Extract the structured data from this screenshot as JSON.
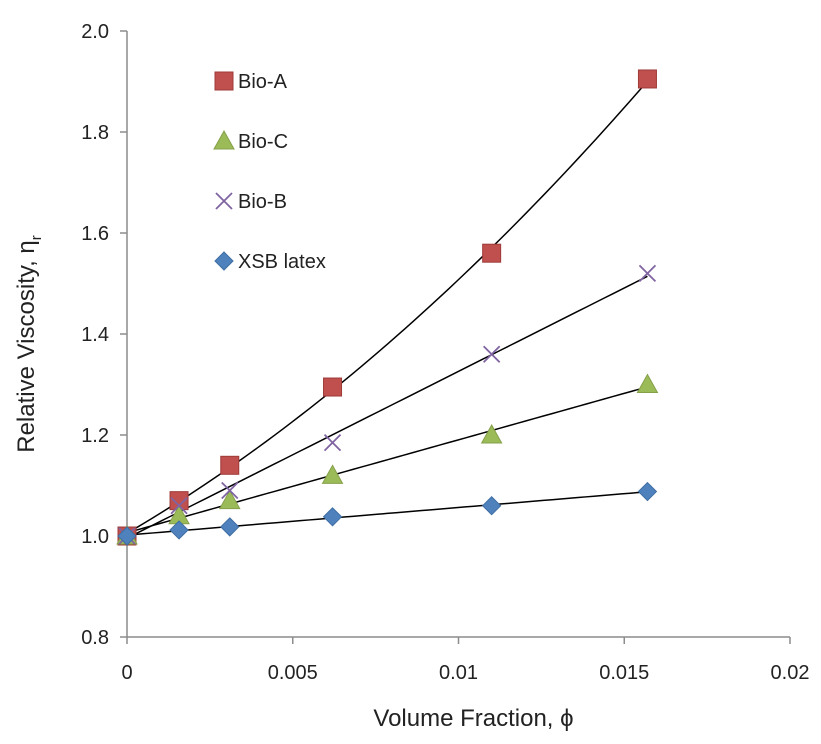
{
  "chart_data": {
    "type": "scatter",
    "title": "",
    "xlabel": "Volume Fraction, ϕ",
    "ylabel": "Relative Viscosity, η",
    "ylabel_subscript": "r",
    "xlim": [
      0,
      0.02
    ],
    "ylim": [
      0.8,
      2.0
    ],
    "x_ticks": [
      0,
      0.005,
      0.01,
      0.015,
      0.02
    ],
    "x_tick_labels": [
      "0",
      "0.005",
      "0.01",
      "0.015",
      "0.02"
    ],
    "y_ticks": [
      0.8,
      1.0,
      1.2,
      1.4,
      1.6,
      1.8,
      2.0
    ],
    "y_tick_labels": [
      "0.8",
      "1.0",
      "1.2",
      "1.4",
      "1.6",
      "1.8",
      "2.0"
    ],
    "grid": false,
    "legend_position": "top-left inside",
    "series": [
      {
        "name": "Bio-A",
        "marker": "square",
        "color": "#c0504d",
        "x": [
          0,
          0.00157,
          0.0031,
          0.0062,
          0.011,
          0.0157
        ],
        "y": [
          1.0,
          1.07,
          1.14,
          1.295,
          1.56,
          1.905
        ],
        "trend": "quadratic"
      },
      {
        "name": "Bio-C",
        "marker": "triangle",
        "color": "#9bbb59",
        "x": [
          0,
          0.00157,
          0.0031,
          0.0062,
          0.011,
          0.0157
        ],
        "y": [
          1.0,
          1.04,
          1.07,
          1.12,
          1.2,
          1.3
        ],
        "trend": "linear"
      },
      {
        "name": "Bio-B",
        "marker": "x",
        "color": "#8064a2",
        "x": [
          0,
          0.00157,
          0.0031,
          0.0062,
          0.011,
          0.0157
        ],
        "y": [
          1.0,
          1.06,
          1.09,
          1.185,
          1.36,
          1.52
        ],
        "trend": "linear"
      },
      {
        "name": "XSB latex",
        "marker": "diamond",
        "color": "#4f81bd",
        "x": [
          0,
          0.00157,
          0.0031,
          0.0062,
          0.011,
          0.0157
        ],
        "y": [
          1.0,
          1.012,
          1.018,
          1.038,
          1.06,
          1.088
        ],
        "trend": "linear"
      }
    ]
  }
}
